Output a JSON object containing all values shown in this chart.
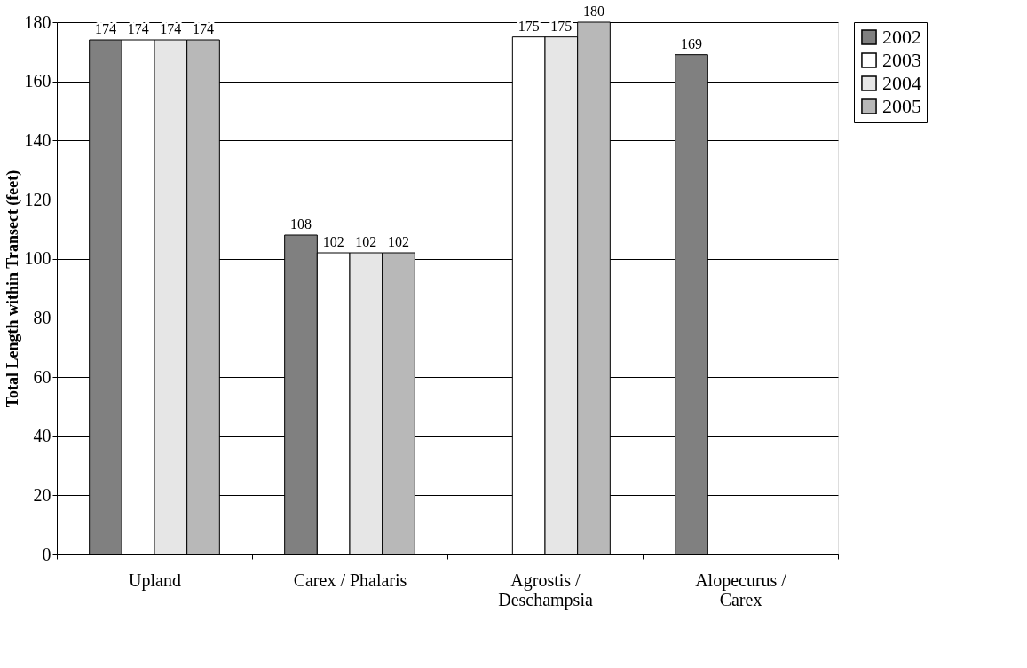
{
  "chart_data": {
    "type": "bar",
    "ylabel": "Total Length within Transect (feet)",
    "categories": [
      "Upland",
      "Carex / Phalaris",
      "Agrostis / Deschampsia",
      "Alopecurus / Carex"
    ],
    "series": [
      {
        "name": "2002",
        "color": "#808080",
        "values": [
          174,
          108,
          null,
          169
        ]
      },
      {
        "name": "2003",
        "color": "#ffffff",
        "values": [
          174,
          102,
          175,
          null
        ]
      },
      {
        "name": "2004",
        "color": "#e6e6e6",
        "values": [
          174,
          102,
          175,
          null
        ]
      },
      {
        "name": "2005",
        "color": "#b8b8b8",
        "values": [
          174,
          102,
          180,
          null
        ]
      }
    ],
    "ylim": [
      0,
      180
    ],
    "yticks": [
      0,
      20,
      40,
      60,
      80,
      100,
      120,
      140,
      160,
      180
    ],
    "grid": "y",
    "legend": "right",
    "data_labels": true
  }
}
